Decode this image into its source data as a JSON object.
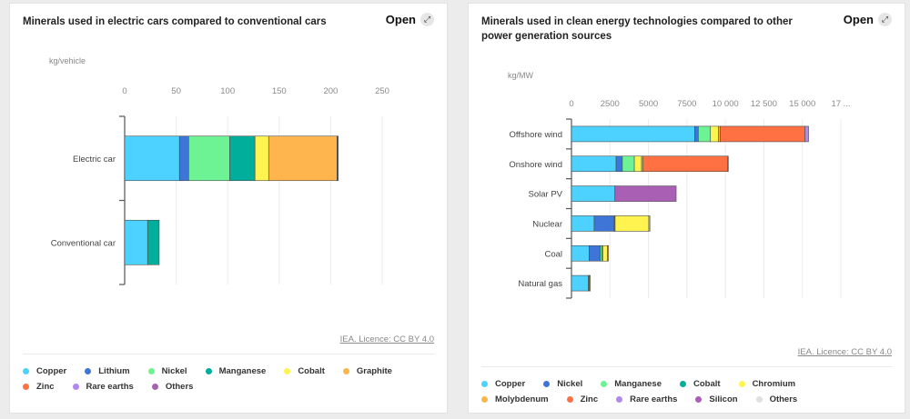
{
  "chart_data": [
    {
      "type": "bar",
      "orientation": "horizontal",
      "stacked": true,
      "title": "Minerals used in electric cars compared to conventional cars",
      "unit_label": "kg/vehicle",
      "xlim": [
        0,
        250
      ],
      "xticks": [
        "0",
        "50",
        "100",
        "150",
        "200",
        "250"
      ],
      "tick_values": [
        0,
        50,
        100,
        150,
        200,
        250
      ],
      "grid": true,
      "legend_position": "bottom",
      "categories": [
        "Electric car",
        "Conventional car"
      ],
      "series": [
        {
          "name": "Copper",
          "color": "#4dd2ff",
          "values": [
            53.2,
            22.3
          ]
        },
        {
          "name": "Lithium",
          "color": "#3f75d6",
          "values": [
            8.9,
            0
          ]
        },
        {
          "name": "Nickel",
          "color": "#6ef394",
          "values": [
            39.9,
            0
          ]
        },
        {
          "name": "Manganese",
          "color": "#00ae9b",
          "values": [
            24.5,
            11.2
          ]
        },
        {
          "name": "Cobalt",
          "color": "#fff44f",
          "values": [
            13.3,
            0
          ]
        },
        {
          "name": "Graphite",
          "color": "#ffb54d",
          "values": [
            66.3,
            0
          ]
        },
        {
          "name": "Zinc",
          "color": "#ff7043",
          "values": [
            0.1,
            0
          ]
        },
        {
          "name": "Rare earths",
          "color": "#b388eb",
          "values": [
            0.5,
            0
          ]
        },
        {
          "name": "Others",
          "color": "#a95fb3",
          "values": [
            0.3,
            0
          ]
        }
      ]
    },
    {
      "type": "bar",
      "orientation": "horizontal",
      "stacked": true,
      "title": "Minerals used in clean energy technologies compared to other power generation sources",
      "unit_label": "kg/MW",
      "xlim": [
        0,
        17500
      ],
      "xticks": [
        "0",
        "2500",
        "5000",
        "7500",
        "10 000",
        "12 500",
        "15 000",
        "17 ..."
      ],
      "tick_values": [
        0,
        2500,
        5000,
        7500,
        10000,
        12500,
        15000,
        17500
      ],
      "grid": true,
      "legend_position": "bottom",
      "categories": [
        "Offshore wind",
        "Onshore wind",
        "Solar PV",
        "Nuclear",
        "Coal",
        "Natural gas"
      ],
      "series": [
        {
          "name": "Copper",
          "color": "#4dd2ff",
          "values": [
            8000,
            2900,
            2822,
            1473,
            1150,
            1100
          ]
        },
        {
          "name": "Nickel",
          "color": "#3f75d6",
          "values": [
            240,
            404,
            1.3,
            1297,
            721,
            16
          ]
        },
        {
          "name": "Manganese",
          "color": "#6ef394",
          "values": [
            790,
            780,
            0,
            5.3,
            115,
            0
          ]
        },
        {
          "name": "Cobalt",
          "color": "#00ae9b",
          "values": [
            0,
            0,
            0,
            60,
            45,
            60
          ]
        },
        {
          "name": "Chromium",
          "color": "#fff44f",
          "values": [
            525,
            470,
            0,
            2190,
            308,
            48
          ]
        },
        {
          "name": "Molybdenum",
          "color": "#ffb54d",
          "values": [
            109,
            99,
            0,
            70,
            66,
            0
          ]
        },
        {
          "name": "Zinc",
          "color": "#ff7043",
          "values": [
            5500,
            5500,
            0,
            0,
            0,
            0
          ]
        },
        {
          "name": "Rare earths",
          "color": "#b388eb",
          "values": [
            239,
            14,
            0,
            0,
            0,
            0
          ]
        },
        {
          "name": "Silicon",
          "color": "#a95fb3",
          "values": [
            0,
            0,
            3978,
            0,
            0,
            0
          ]
        },
        {
          "name": "Others",
          "color": "#e0e0e0",
          "values": [
            0,
            0,
            0,
            0,
            0,
            0
          ]
        }
      ]
    }
  ],
  "panels": [
    {
      "open_label": "Open",
      "open_icon": "expand-icon",
      "credit": "IEA. Licence: CC BY 4.0"
    },
    {
      "open_label": "Open",
      "open_icon": "expand-icon",
      "credit": "IEA. Licence: CC BY 4.0"
    }
  ]
}
